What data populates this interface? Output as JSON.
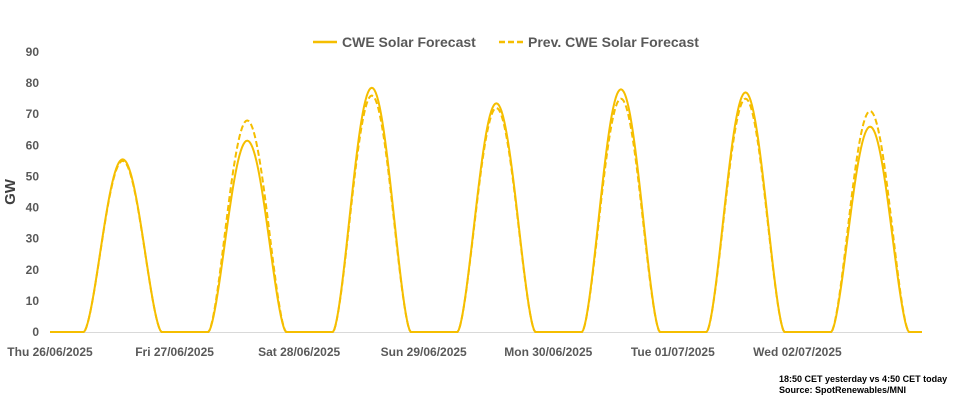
{
  "chart_data": {
    "type": "line",
    "title": "",
    "ylabel": "GW",
    "xlabel": "",
    "ylim": [
      0,
      90
    ],
    "y_ticks": [
      "0",
      "10",
      "20",
      "30",
      "40",
      "50",
      "60",
      "70",
      "80",
      "90"
    ],
    "grid": false,
    "legend_position": "top",
    "days": [
      "Thu 26/06/2025",
      "Fri 27/06/2025",
      "Sat 28/06/2025",
      "Sun 29/06/2025",
      "Mon 30/06/2025",
      "Tue 01/07/2025",
      "Wed 02/07/2025"
    ],
    "series": [
      {
        "name": "CWE Solar Forecast",
        "color": "#F5BE00",
        "style": "solid",
        "daily_peak_gw": [
          55.5,
          61.5,
          78.5,
          73.5,
          78,
          77,
          66
        ]
      },
      {
        "name": "Prev. CWE Solar Forecast",
        "color": "#F5BE00",
        "style": "dashed",
        "daily_peak_gw": [
          55,
          68,
          76,
          72,
          75,
          75,
          71
        ]
      }
    ]
  },
  "notes": {
    "line1": "18:50 CET yesterday vs  4:50 CET today",
    "line2": "Source: SpotRenewables/MNI"
  }
}
